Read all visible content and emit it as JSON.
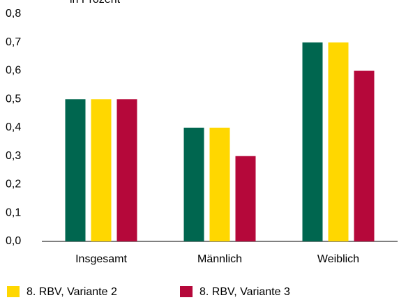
{
  "chart_data": {
    "type": "bar",
    "subtitle": "in Prozent",
    "categories": [
      "Insgesamt",
      "Männlich",
      "Weiblich"
    ],
    "series": [
      {
        "color": "#00664f",
        "values": [
          0.5,
          0.4,
          0.7
        ]
      },
      {
        "name": "8. RBV, Variante 2",
        "color": "#ffd700",
        "values": [
          0.5,
          0.4,
          0.7
        ]
      },
      {
        "name": "8. RBV, Variante 3",
        "color": "#b5083a",
        "values": [
          0.5,
          0.3,
          0.6
        ]
      }
    ],
    "ylim": [
      0,
      0.8
    ],
    "yticks": [
      {
        "value": 0,
        "label": "0,0"
      },
      {
        "value": 0.1,
        "label": "0,1"
      },
      {
        "value": 0.2,
        "label": "0,2"
      },
      {
        "value": 0.3,
        "label": "0,3"
      },
      {
        "value": 0.4,
        "label": "0,4"
      },
      {
        "value": 0.5,
        "label": "0,5"
      },
      {
        "value": 0.6,
        "label": "0,6"
      },
      {
        "value": 0.7,
        "label": "0,7"
      },
      {
        "value": 0.8,
        "label": "0,8"
      }
    ],
    "grid": false
  }
}
